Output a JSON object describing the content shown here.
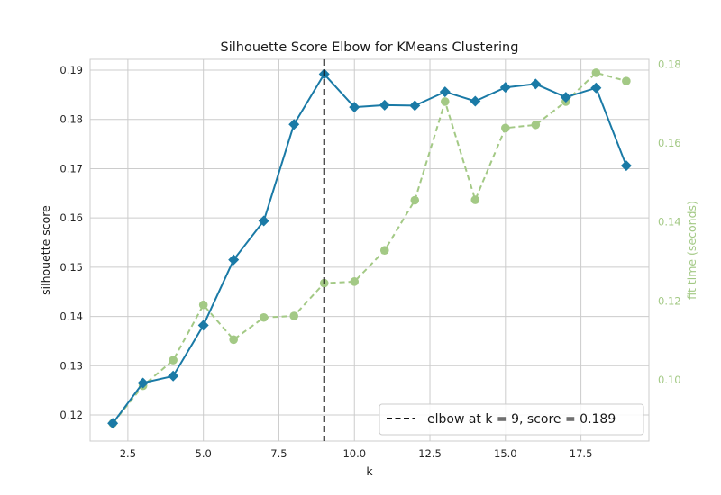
{
  "chart_data": {
    "type": "line",
    "title": "Silhouette Score Elbow for KMeans Clustering",
    "xlabel": "k",
    "ylabel": "silhouette score",
    "y2label": "fit time (seconds)",
    "xlim": [
      1.25,
      19.75
    ],
    "ylim": [
      0.1147,
      0.1922
    ],
    "y2lim": [
      0.0845,
      0.1812
    ],
    "x_ticks": [
      "2.5",
      "5.0",
      "7.5",
      "10.0",
      "12.5",
      "15.0",
      "17.5"
    ],
    "y_ticks": [
      "0.12",
      "0.13",
      "0.14",
      "0.15",
      "0.16",
      "0.17",
      "0.18",
      "0.19"
    ],
    "y2_ticks": [
      "0.10",
      "0.12",
      "0.14",
      "0.16",
      "0.18"
    ],
    "grid": true,
    "x": [
      2,
      3,
      4,
      5,
      6,
      7,
      8,
      9,
      10,
      11,
      12,
      13,
      14,
      15,
      16,
      17,
      18,
      19
    ],
    "series": [
      {
        "name": "silhouette score",
        "axis": "left",
        "color": "#1a7aa6",
        "marker": "diamond",
        "values": [
          0.1183,
          0.1265,
          0.1279,
          0.1382,
          0.1515,
          0.1594,
          0.179,
          0.1892,
          0.1825,
          0.1829,
          0.1828,
          0.1856,
          0.1837,
          0.1865,
          0.1872,
          0.1845,
          0.1864,
          0.1706
        ]
      },
      {
        "name": "fit time",
        "axis": "right",
        "color": "#a3c985",
        "marker": "circle",
        "dashed": true,
        "values": [
          0.089,
          0.0985,
          0.105,
          0.119,
          0.1102,
          0.1158,
          0.1162,
          0.1245,
          0.1249,
          0.1328,
          0.1455,
          0.1705,
          0.1456,
          0.1638,
          0.1646,
          0.1705,
          0.1778,
          0.1757
        ]
      }
    ],
    "elbow": {
      "k": 9,
      "score": 0.189,
      "color": "#111111",
      "legend_text": "elbow at k = 9, score = 0.189",
      "legend_location": "lower-right"
    }
  }
}
